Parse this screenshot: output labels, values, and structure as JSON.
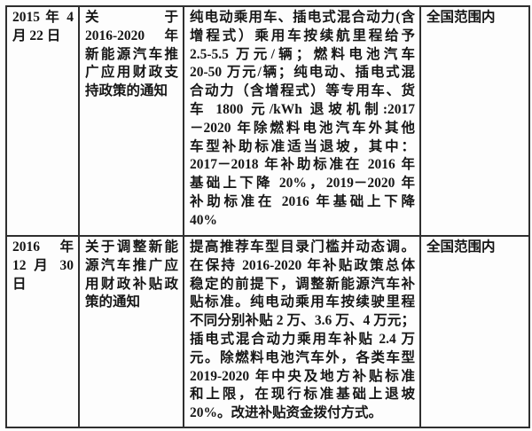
{
  "page": {
    "background_color": "#fdfdfd",
    "text_color": "#161616",
    "border_color": "#2f2f2f"
  },
  "table": {
    "rows": [
      {
        "date_lines": [
          "2015 年 4",
          "月 22 日"
        ],
        "title_lines": [
          "关于",
          "2016-2020 年",
          "新能源汽车推",
          "广应用财政支",
          "持政策的通知"
        ],
        "content_lines": [
          "纯电动乘用车、插电式混合动力(含",
          "增程式）乘用车按续航里程给予",
          "2.5-5.5 万元/辆；燃料电池汽车",
          "20-50 万元/辆；纯电动、插电式混",
          "合动力（含增程式）等专用车、货",
          "车 1800 元/kWh 退坡机制:2017",
          "－2020 年除燃料电池汽车外其他",
          "车型补助标准适当退坡，其中：",
          "2017－2018 年补助标准在 2016 年",
          "基础上下降 20%，2019－2020 年",
          "补助标准在 2016 年基础上下降",
          "40%"
        ],
        "scope_lines": [
          "全国范围内"
        ]
      },
      {
        "date_lines": [
          "2016 年",
          "12 月 30",
          "日"
        ],
        "title_lines": [
          "关于调整新能",
          "源汽车推广应",
          "用财政补贴政",
          "策的通知"
        ],
        "content_lines": [
          "提高推荐车型目录门槛并动态调。",
          "在保持 2016-2020 年补贴政策总体",
          "稳定的前提下，调整新能源汽车补",
          "贴标准。纯电动乘用车按续驶里程",
          "不同分别补贴 2 万、3.6 万、4 万元；",
          "插电式混合动力乘用车补贴 2.4 万",
          "元。除燃料电池汽车外，各类车型",
          "2019-2020 年中央及地方补贴标准",
          "和上限，在现行标准基础上退坡",
          "20%。改进补贴资金拨付方式。"
        ],
        "scope_lines": [
          "全国范围内"
        ]
      }
    ]
  }
}
